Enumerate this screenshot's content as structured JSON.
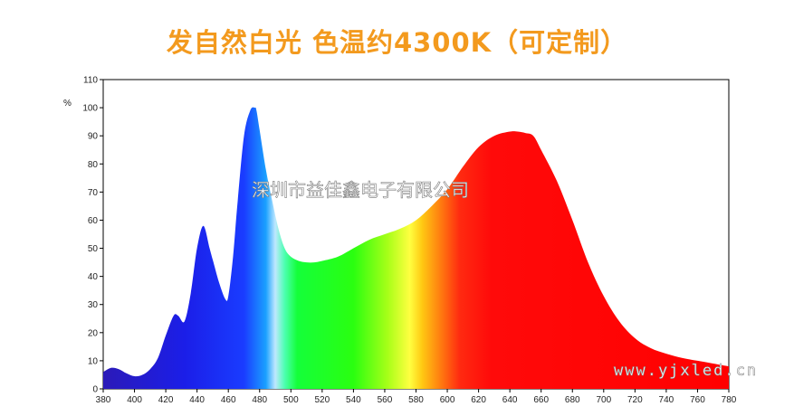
{
  "title": "发自然白光 色温约4300K（可定制）",
  "colors": {
    "title": "#f39a1e"
  },
  "chart_data": {
    "type": "area",
    "title": "发自然白光 色温约4300K（可定制）",
    "ylabel": "%",
    "xlabel": "",
    "xlim": [
      380,
      780
    ],
    "ylim": [
      0,
      110
    ],
    "xticks": [
      380,
      400,
      420,
      440,
      460,
      480,
      500,
      520,
      540,
      560,
      580,
      600,
      620,
      640,
      660,
      680,
      700,
      720,
      740,
      760,
      780
    ],
    "yticks": [
      0,
      10,
      20,
      30,
      40,
      50,
      60,
      70,
      80,
      90,
      100,
      110
    ],
    "grid": false,
    "fill": "spectral gradient (violet-blue-cyan-green-yellow-orange-red)",
    "series": [
      {
        "x": [
          380,
          385,
          390,
          395,
          400,
          405,
          410,
          415,
          420,
          425,
          428,
          432,
          436,
          440,
          444,
          448,
          450,
          454,
          458,
          460,
          463,
          466,
          470,
          474,
          477,
          478,
          480,
          484,
          488,
          492,
          496,
          500,
          505,
          510,
          515,
          520,
          530,
          540,
          550,
          560,
          570,
          580,
          590,
          600,
          610,
          620,
          630,
          640,
          645,
          650,
          655,
          660,
          670,
          680,
          690,
          700,
          710,
          720,
          730,
          740,
          750,
          760,
          770,
          780
        ],
        "values": [
          6,
          7.5,
          7,
          5.5,
          4.5,
          5,
          7,
          11,
          19,
          26,
          26,
          24,
          34,
          50,
          58,
          50,
          46,
          38,
          32,
          33,
          47,
          67,
          90,
          99,
          100,
          99,
          92,
          78,
          67,
          57,
          50,
          47,
          45.5,
          45,
          45,
          45.5,
          47,
          50,
          53,
          55,
          57,
          60,
          65,
          71,
          79,
          86,
          90,
          91.5,
          91.5,
          91,
          90,
          85,
          74,
          60,
          45,
          33,
          24,
          18,
          14.5,
          12.5,
          11,
          10,
          9,
          8
        ]
      }
    ]
  },
  "watermarks": {
    "company": "深圳市益佳鑫电子有限公司",
    "site": "www.yjxled.cn"
  }
}
